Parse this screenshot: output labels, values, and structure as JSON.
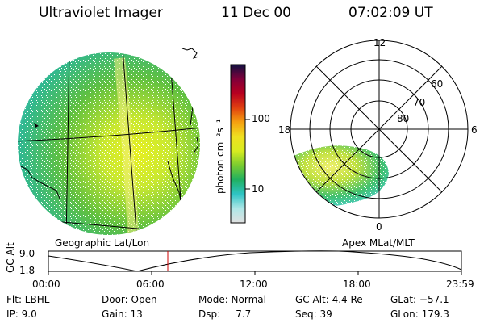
{
  "header": {
    "instrument": "Ultraviolet Imager",
    "date": "11 Dec 00",
    "time": "07:02:09 UT"
  },
  "geo_panel": {
    "label": "Geographic Lat/Lon"
  },
  "colorbar": {
    "unit_label": "photon cm⁻²s⁻¹",
    "ticks": [
      "100",
      "10"
    ],
    "scale": "log",
    "colors": [
      "#e0e0e0",
      "#aee6e6",
      "#2ec4c4",
      "#20b060",
      "#7acc30",
      "#d8ec20",
      "#f0e020",
      "#f5a010",
      "#e04010",
      "#b80020",
      "#80003a",
      "#101040"
    ]
  },
  "polar_panel": {
    "label": "Apex MLat/MLT",
    "mlt_labels": [
      "12",
      "18",
      "6",
      "0"
    ],
    "lat_labels": [
      "60",
      "70",
      "80"
    ]
  },
  "timeline": {
    "axis_label": "GC Alt",
    "y_ticks": [
      "9.0",
      "1.8"
    ],
    "x_ticks": [
      "00:00",
      "06:00",
      "12:00",
      "18:00",
      "23:59"
    ],
    "current_time_color": "#cc0000"
  },
  "status": {
    "row1": {
      "flt": "Flt: LBHL",
      "door": "Door: Open",
      "mode": "Mode: Normal",
      "gc_alt": "GC Alt: 4.4 Re",
      "glat": "GLat: −57.1"
    },
    "row2": {
      "ip": "IP:  9.0",
      "gain": "Gain: 13",
      "dsp": "Dsp:     7.7",
      "seq": "Seq: 39",
      "glon": "GLon: 179.3"
    }
  }
}
